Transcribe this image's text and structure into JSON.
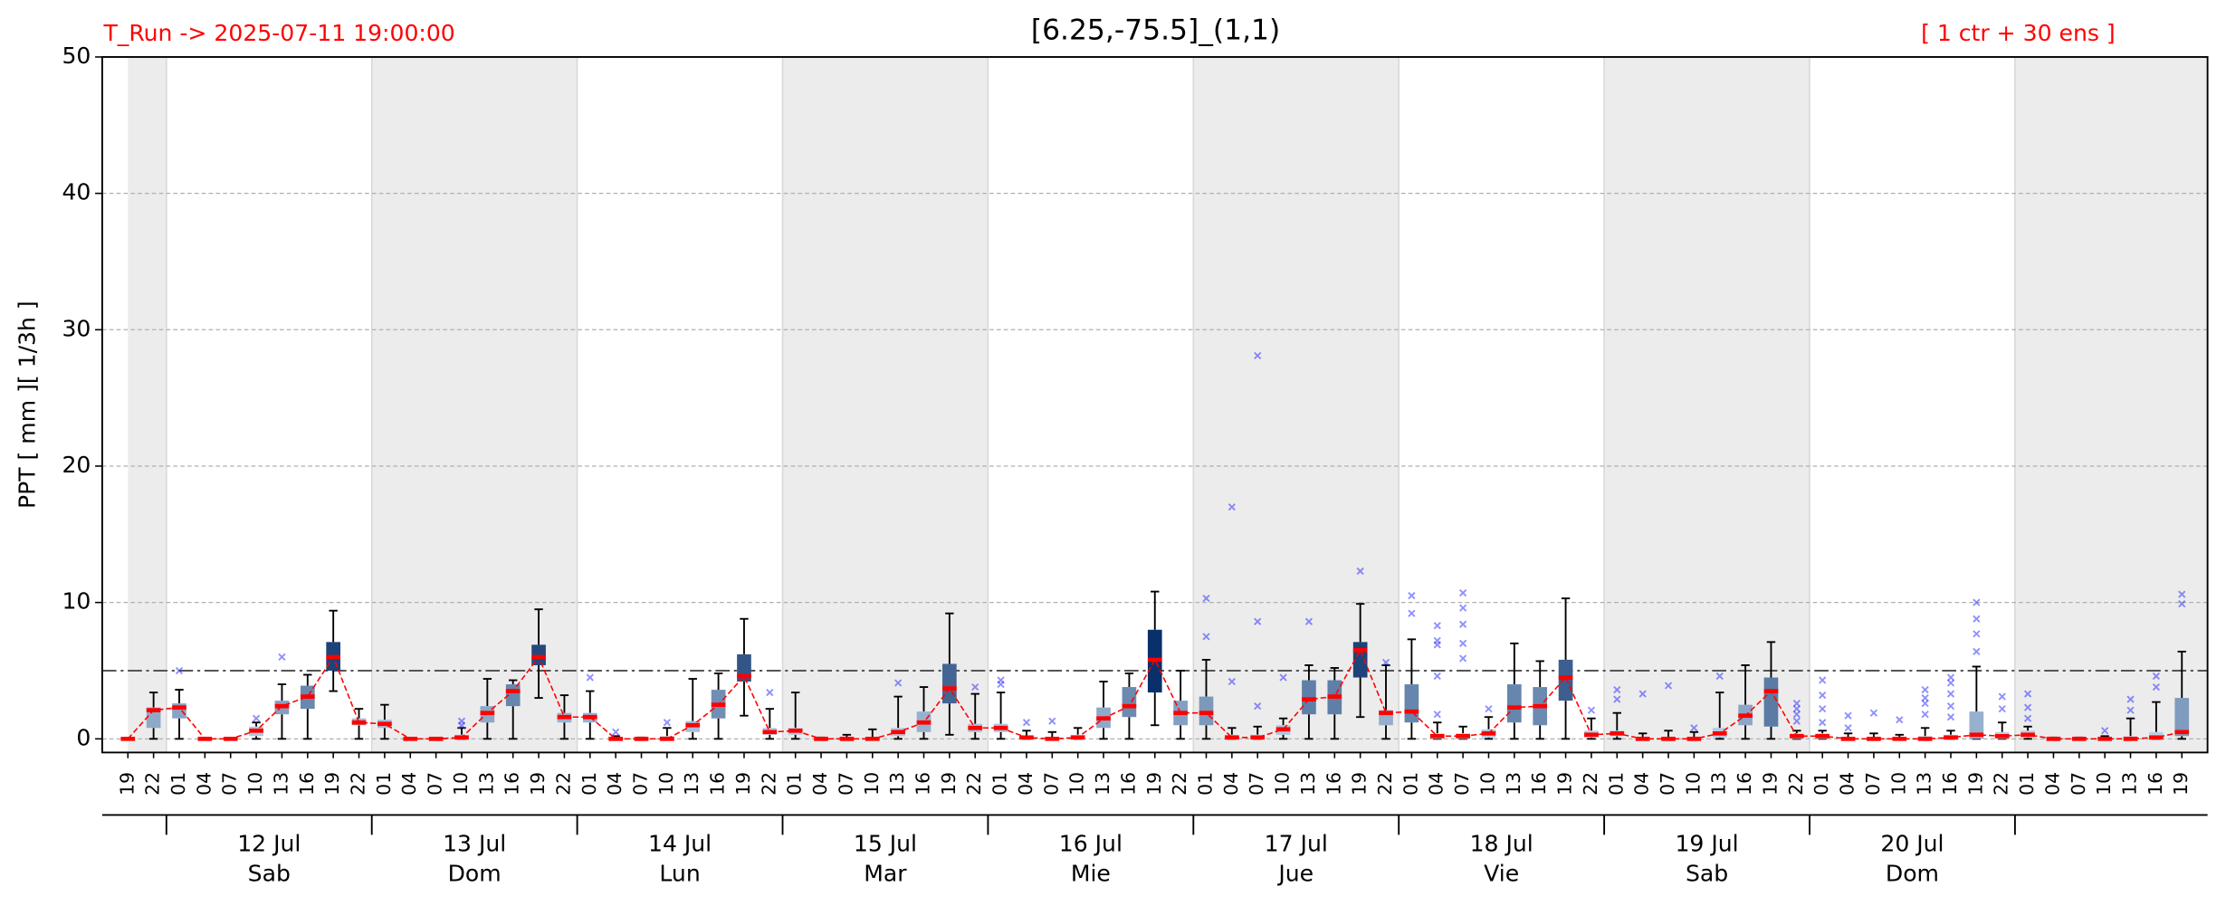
{
  "chart_data": {
    "type": "box",
    "title": "[6.25,-75.5]_(1,1)",
    "run_label": "T_Run -> 2025-07-11  19:00:00",
    "members_label": "[ 1 ctr + 30 ens ]",
    "ylabel": "PPT  [ mm ][ 1/3h ]",
    "ylim": [
      -1,
      50
    ],
    "yticks": [
      0,
      10,
      20,
      30,
      40,
      50
    ],
    "grid": true,
    "threshold": 5,
    "median_color": "#ff0000",
    "outlier_color": "#3333ff",
    "categories": [
      "19",
      "22",
      "01",
      "04",
      "07",
      "10",
      "13",
      "16",
      "19",
      "22",
      "01",
      "04",
      "07",
      "10",
      "13",
      "16",
      "19",
      "22",
      "01",
      "04",
      "07",
      "10",
      "13",
      "16",
      "19",
      "22",
      "01",
      "04",
      "07",
      "10",
      "13",
      "16",
      "19",
      "22",
      "01",
      "04",
      "07",
      "10",
      "13",
      "16",
      "19",
      "22",
      "01",
      "04",
      "07",
      "10",
      "13",
      "16",
      "19",
      "22",
      "01",
      "04",
      "07",
      "10",
      "13",
      "16",
      "19",
      "22",
      "01",
      "04",
      "07",
      "10",
      "13",
      "16",
      "19",
      "22",
      "01",
      "04",
      "07",
      "10",
      "13",
      "16",
      "19",
      "22",
      "01",
      "04",
      "07",
      "10",
      "13",
      "16",
      "19"
    ],
    "days": [
      {
        "date": "12 Jul",
        "weekday": "Sab"
      },
      {
        "date": "13 Jul",
        "weekday": "Dom"
      },
      {
        "date": "14 Jul",
        "weekday": "Lun"
      },
      {
        "date": "15 Jul",
        "weekday": "Mar"
      },
      {
        "date": "16 Jul",
        "weekday": "Mie"
      },
      {
        "date": "17 Jul",
        "weekday": "Jue"
      },
      {
        "date": "18 Jul",
        "weekday": "Vie"
      },
      {
        "date": "19 Jul",
        "weekday": "Sab"
      },
      {
        "date": "20 Jul",
        "weekday": "Dom"
      }
    ],
    "median": [
      0,
      2.1,
      2.3,
      0,
      0,
      0.6,
      2.4,
      3.1,
      6.0,
      1.2,
      1.1,
      0,
      0,
      0.1,
      1.9,
      3.5,
      6.0,
      1.6,
      1.6,
      0,
      0,
      0,
      1.0,
      2.5,
      4.6,
      0.5,
      0.6,
      0,
      0,
      0,
      0.5,
      1.2,
      3.7,
      0.8,
      0.8,
      0.1,
      0,
      0.1,
      1.5,
      2.4,
      5.8,
      1.9,
      1.9,
      0.1,
      0.1,
      0.7,
      2.9,
      3.1,
      6.5,
      1.9,
      2.0,
      0.2,
      0.2,
      0.4,
      2.3,
      2.4,
      4.5,
      0.3,
      0.4,
      0,
      0,
      0,
      0.4,
      1.7,
      3.5,
      0.2,
      0.2,
      0,
      0,
      0,
      0,
      0.1,
      0.3,
      0.2,
      0.3,
      0,
      0,
      0,
      0,
      0.1,
      0.5
    ],
    "q1": [
      0,
      0.8,
      1.5,
      0,
      0,
      0.2,
      1.8,
      2.2,
      5.0,
      1.0,
      0.8,
      0,
      0,
      0,
      1.2,
      2.4,
      5.4,
      1.2,
      1.2,
      0,
      0,
      0,
      0.5,
      1.5,
      4.2,
      0.3,
      0.3,
      0,
      0,
      0,
      0.2,
      0.5,
      2.6,
      0.5,
      0.5,
      0,
      0,
      0,
      0.8,
      1.6,
      3.4,
      1.0,
      1.0,
      0,
      0,
      0.3,
      1.8,
      1.8,
      4.5,
      1.0,
      1.2,
      0,
      0,
      0.1,
      1.2,
      1.0,
      2.8,
      0.1,
      0.2,
      0,
      0,
      0,
      0.1,
      1.0,
      0.9,
      0,
      0,
      0,
      0,
      0,
      0,
      0,
      0,
      0,
      0.1,
      0,
      0,
      0,
      0,
      0,
      0.2
    ],
    "q3": [
      0,
      2.3,
      2.6,
      0,
      0,
      0.9,
      2.8,
      3.9,
      7.1,
      1.5,
      1.4,
      0,
      0,
      0.3,
      2.4,
      4.0,
      6.9,
      1.9,
      1.9,
      0,
      0,
      0.2,
      1.3,
      3.6,
      6.2,
      0.8,
      0.8,
      0,
      0,
      0,
      0.8,
      2.0,
      5.5,
      1.1,
      1.1,
      0.2,
      0.1,
      0.3,
      2.3,
      3.8,
      8.0,
      2.8,
      3.1,
      0.3,
      0.3,
      1.0,
      4.3,
      4.3,
      7.1,
      2.1,
      4.0,
      0.4,
      0.4,
      0.7,
      4.0,
      3.8,
      5.8,
      0.6,
      0.6,
      0.1,
      0.1,
      0.1,
      0.8,
      2.5,
      4.5,
      0.4,
      0.4,
      0.1,
      0.1,
      0.1,
      0.2,
      0.3,
      2.0,
      0.5,
      0.6,
      0,
      0,
      0.1,
      0.2,
      0.5,
      3.0
    ],
    "whis_lo": [
      0,
      0,
      0,
      0,
      0,
      0,
      0,
      0,
      3.5,
      0,
      0,
      0,
      0,
      0,
      0,
      0,
      3.0,
      0,
      0,
      0,
      0,
      0,
      0,
      0,
      1.7,
      0,
      0,
      0,
      0,
      0,
      0,
      0,
      0.3,
      0,
      0,
      0,
      0,
      0,
      0,
      0,
      1.0,
      0,
      0,
      0,
      0,
      0,
      0,
      0,
      1.6,
      0,
      0,
      0,
      0,
      0,
      0,
      0,
      0,
      0,
      0,
      0,
      0,
      0,
      0,
      0,
      0,
      0,
      0,
      0,
      0,
      0,
      0,
      0,
      0,
      0,
      0,
      0,
      0,
      0,
      0,
      0,
      0
    ],
    "whis_hi": [
      0,
      3.4,
      3.6,
      0,
      0,
      1.2,
      4.0,
      4.7,
      9.4,
      2.2,
      2.5,
      0,
      0,
      0.8,
      4.4,
      4.3,
      9.5,
      3.2,
      3.5,
      0.2,
      0.1,
      0.8,
      4.4,
      4.8,
      8.8,
      2.2,
      3.4,
      0.1,
      0.3,
      0.7,
      3.1,
      3.8,
      9.2,
      3.3,
      3.4,
      0.6,
      0.5,
      0.8,
      4.2,
      4.8,
      10.8,
      5.0,
      5.8,
      0.8,
      0.9,
      1.5,
      5.4,
      5.2,
      9.9,
      5.4,
      7.3,
      1.2,
      0.9,
      1.6,
      7.0,
      5.7,
      10.3,
      1.5,
      1.9,
      0.4,
      0.6,
      0.5,
      3.4,
      5.4,
      7.1,
      0.6,
      0.6,
      0.4,
      0.4,
      0.3,
      0.8,
      0.6,
      5.3,
      1.2,
      0.9,
      0.1,
      0.1,
      0.2,
      1.5,
      2.7,
      6.4
    ],
    "outliers": [
      [],
      [],
      [
        5.0
      ],
      [],
      [],
      [
        1.5
      ],
      [
        6.0
      ],
      [],
      [],
      [],
      [],
      [],
      [],
      [
        1.0,
        1.3
      ],
      [],
      [],
      [],
      [],
      [
        4.5
      ],
      [
        0.5
      ],
      [],
      [
        1.2
      ],
      [],
      [],
      [],
      [
        3.4
      ],
      [],
      [],
      [],
      [],
      [
        4.1
      ],
      [],
      [],
      [
        3.8
      ],
      [
        4.0,
        4.3
      ],
      [
        1.2
      ],
      [
        1.3
      ],
      [],
      [],
      [],
      [],
      [],
      [
        7.5,
        10.3
      ],
      [
        4.2,
        17.0
      ],
      [
        2.4,
        8.6,
        28.1
      ],
      [
        4.5
      ],
      [
        8.6
      ],
      [],
      [
        12.3
      ],
      [
        5.6
      ],
      [
        9.2,
        10.5
      ],
      [
        1.8,
        4.6,
        6.9,
        7.2,
        8.3
      ],
      [
        5.9,
        7.0,
        8.4,
        9.6,
        10.7
      ],
      [
        2.2
      ],
      [],
      [],
      [],
      [
        2.1
      ],
      [
        2.9,
        3.6
      ],
      [
        3.3
      ],
      [
        3.9
      ],
      [
        0.8
      ],
      [
        4.6
      ],
      [],
      [],
      [
        1.3,
        1.8,
        2.2,
        2.6
      ],
      [
        1.2,
        2.2,
        3.2,
        4.3
      ],
      [
        0.8,
        1.7
      ],
      [
        1.9
      ],
      [
        1.4
      ],
      [
        1.8,
        2.6,
        3.0,
        3.6
      ],
      [
        1.6,
        2.4,
        3.3,
        4.1,
        4.5
      ],
      [
        6.4,
        7.7,
        8.8,
        10.0
      ],
      [
        2.2,
        3.1
      ],
      [
        1.5,
        2.3,
        3.3
      ],
      [],
      [],
      [
        0.6
      ],
      [
        2.1,
        2.9
      ],
      [
        3.8,
        4.6
      ],
      [
        9.9,
        10.6
      ]
    ]
  }
}
